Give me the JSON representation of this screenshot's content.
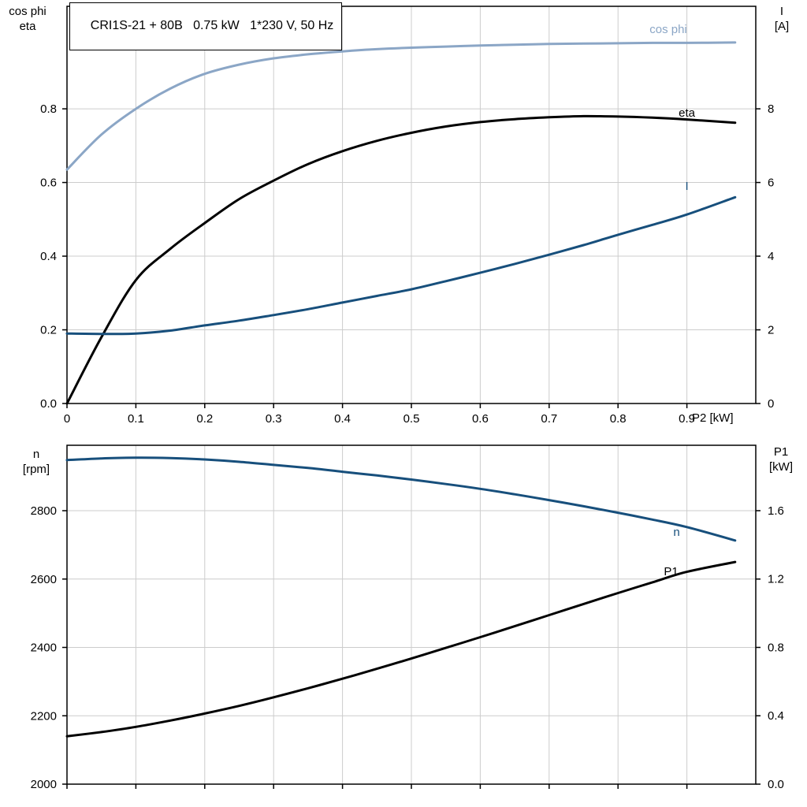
{
  "title": "CRI1S-21 + 80B   0.75 kW   1*230 V, 50 Hz",
  "colors": {
    "light_blue": "#8ba6c6",
    "dark_blue": "#174f7c",
    "black": "#000000",
    "grid": "#cccccc",
    "axis": "#000000"
  },
  "chart_data": [
    {
      "type": "line",
      "title": "CRI1S-21 + 80B   0.75 kW   1*230 V, 50 Hz",
      "x_axis": {
        "label": "P2 [kW]",
        "range": [
          0,
          1.0
        ],
        "ticks": [
          0,
          0.1,
          0.2,
          0.3,
          0.4,
          0.5,
          0.6,
          0.7,
          0.8,
          0.9
        ],
        "tick_labels": [
          "0",
          "0.1",
          "0.2",
          "0.3",
          "0.4",
          "0.5",
          "0.6",
          "0.7",
          "0.8",
          "0.9"
        ],
        "gridlines": [
          0.1,
          0.2,
          0.3,
          0.4,
          0.5,
          0.6,
          0.7,
          0.8,
          0.9
        ]
      },
      "left_axis": {
        "label": [
          "cos phi",
          "eta"
        ],
        "range": [
          0,
          1.0783
        ],
        "ticks": [
          0,
          0.2,
          0.4,
          0.6,
          0.8
        ],
        "tick_labels": [
          "0.0",
          "0.2",
          "0.4",
          "0.6",
          "0.8"
        ],
        "gridlines": [
          0.2,
          0.4,
          0.6,
          0.8
        ]
      },
      "right_axis": {
        "label": [
          "I",
          "[A]"
        ],
        "range": [
          0,
          10.783
        ],
        "ticks": [
          0,
          2,
          4,
          6,
          8
        ],
        "tick_labels": [
          "0",
          "2",
          "4",
          "6",
          "8"
        ]
      },
      "series": [
        {
          "name": "cos phi",
          "axis": "left",
          "color_key": "light_blue",
          "label_pos": {
            "x": 0.873,
            "y": 1.016
          },
          "x": [
            0,
            0.05,
            0.1,
            0.15,
            0.2,
            0.25,
            0.3,
            0.35,
            0.4,
            0.45,
            0.5,
            0.55,
            0.6,
            0.65,
            0.7,
            0.75,
            0.8,
            0.85,
            0.9,
            0.97
          ],
          "y": [
            0.635,
            0.73,
            0.8,
            0.855,
            0.895,
            0.92,
            0.937,
            0.948,
            0.956,
            0.962,
            0.966,
            0.969,
            0.972,
            0.974,
            0.976,
            0.977,
            0.978,
            0.979,
            0.979,
            0.98
          ]
        },
        {
          "name": "eta",
          "axis": "left",
          "color_key": "black",
          "label_pos": {
            "x": 0.9,
            "y": 0.79
          },
          "x": [
            0,
            0.05,
            0.1,
            0.15,
            0.2,
            0.25,
            0.3,
            0.35,
            0.4,
            0.45,
            0.5,
            0.55,
            0.6,
            0.65,
            0.7,
            0.75,
            0.8,
            0.85,
            0.9,
            0.97
          ],
          "y": [
            0,
            0.18,
            0.335,
            0.42,
            0.49,
            0.555,
            0.605,
            0.65,
            0.685,
            0.713,
            0.735,
            0.752,
            0.764,
            0.772,
            0.777,
            0.78,
            0.779,
            0.776,
            0.771,
            0.762
          ]
        },
        {
          "name": "I",
          "axis": "right",
          "color_key": "dark_blue",
          "label_pos": {
            "x": 0.9,
            "y": 5.9
          },
          "x": [
            0,
            0.05,
            0.1,
            0.15,
            0.2,
            0.25,
            0.3,
            0.35,
            0.4,
            0.45,
            0.5,
            0.55,
            0.6,
            0.65,
            0.7,
            0.75,
            0.8,
            0.85,
            0.9,
            0.97
          ],
          "y": [
            1.9,
            1.89,
            1.9,
            1.98,
            2.12,
            2.25,
            2.4,
            2.56,
            2.74,
            2.92,
            3.1,
            3.32,
            3.55,
            3.79,
            4.04,
            4.3,
            4.58,
            4.85,
            5.13,
            5.6
          ]
        }
      ]
    },
    {
      "type": "line",
      "title": "",
      "x_axis": {
        "label": "",
        "range": [
          0,
          1.0
        ],
        "ticks": [
          0,
          0.1,
          0.2,
          0.3,
          0.4,
          0.5,
          0.6,
          0.7,
          0.8,
          0.9
        ],
        "tick_labels": [],
        "gridlines": [
          0.1,
          0.2,
          0.3,
          0.4,
          0.5,
          0.6,
          0.7,
          0.8,
          0.9
        ]
      },
      "left_axis": {
        "label": [
          "n",
          "[rpm]"
        ],
        "range": [
          2000,
          2991.4
        ],
        "ticks": [
          2000,
          2200,
          2400,
          2600,
          2800
        ],
        "tick_labels": [
          "2000",
          "2200",
          "2400",
          "2600",
          "2800"
        ],
        "gridlines": [
          2200,
          2400,
          2600,
          2800
        ]
      },
      "right_axis": {
        "label": [
          "P1",
          "[kW]"
        ],
        "range": [
          0,
          1.9827
        ],
        "ticks": [
          0,
          0.4,
          0.8,
          1.2,
          1.6
        ],
        "tick_labels": [
          "0.0",
          "0.4",
          "0.8",
          "1.2",
          "1.6"
        ]
      },
      "series": [
        {
          "name": "n",
          "axis": "left",
          "color_key": "dark_blue",
          "label_pos": {
            "x": 0.885,
            "y": 2738
          },
          "x": [
            0,
            0.05,
            0.1,
            0.15,
            0.2,
            0.25,
            0.3,
            0.35,
            0.4,
            0.45,
            0.5,
            0.55,
            0.6,
            0.65,
            0.7,
            0.75,
            0.8,
            0.85,
            0.9,
            0.97
          ],
          "y": [
            2948,
            2953,
            2955,
            2954,
            2950,
            2943,
            2934,
            2925,
            2914,
            2903,
            2891,
            2878,
            2864,
            2848,
            2831,
            2813,
            2794,
            2774,
            2752,
            2713
          ]
        },
        {
          "name": "P1",
          "axis": "right",
          "color_key": "black",
          "label_pos": {
            "x": 0.877,
            "y": 1.245
          },
          "x": [
            0,
            0.05,
            0.1,
            0.15,
            0.2,
            0.25,
            0.3,
            0.35,
            0.4,
            0.45,
            0.5,
            0.55,
            0.6,
            0.65,
            0.7,
            0.75,
            0.8,
            0.85,
            0.9,
            0.97
          ],
          "y": [
            0.28,
            0.305,
            0.335,
            0.372,
            0.413,
            0.458,
            0.508,
            0.561,
            0.617,
            0.675,
            0.735,
            0.797,
            0.86,
            0.924,
            0.989,
            1.054,
            1.118,
            1.181,
            1.242,
            1.3
          ]
        }
      ]
    }
  ]
}
